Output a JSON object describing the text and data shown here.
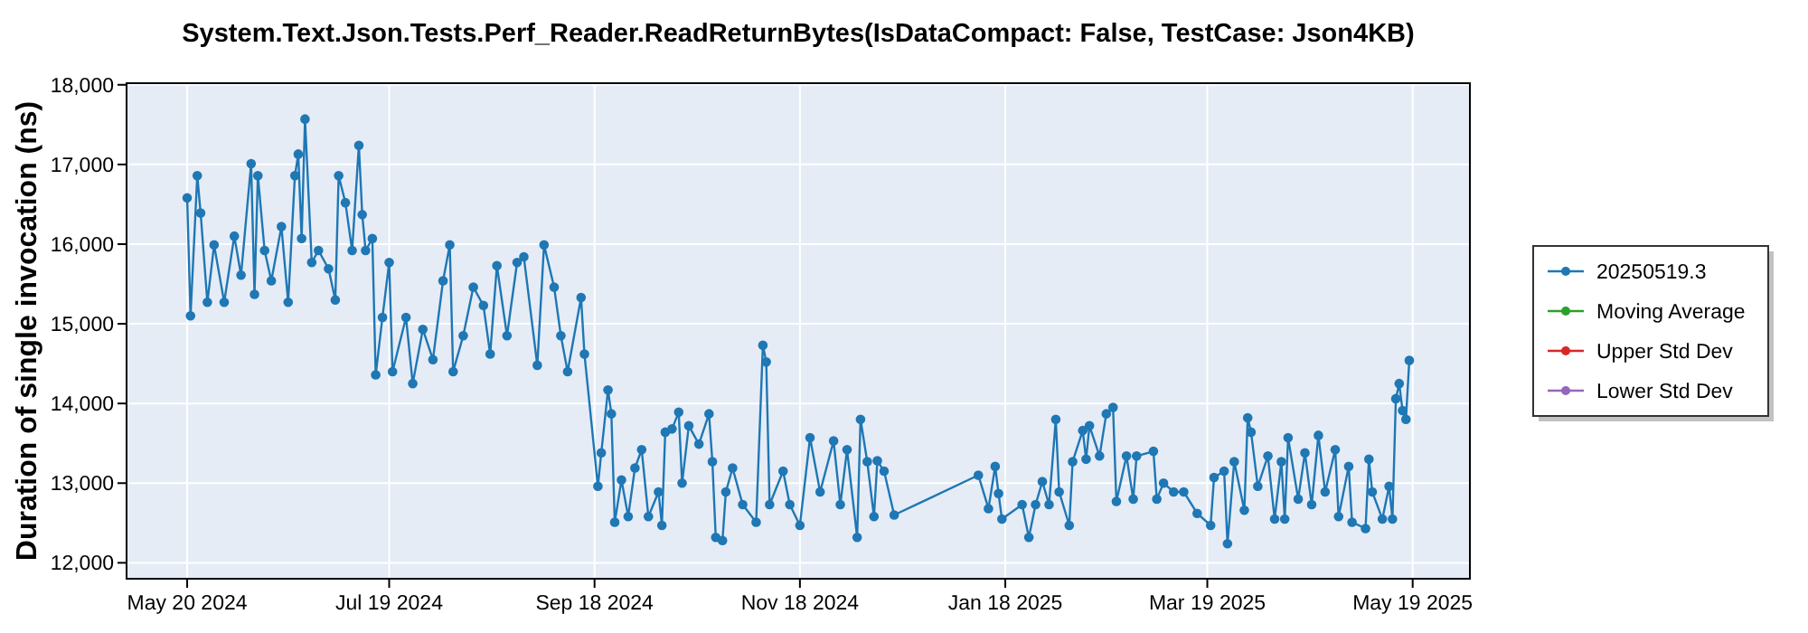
{
  "chart_data": {
    "type": "line",
    "title": "System.Text.Json.Tests.Perf_Reader.ReadReturnBytes(IsDataCompact: False, TestCase: Json4KB)",
    "ylabel": "Duration of single invocation (ns)",
    "xlim": [
      "2024-05-02",
      "2025-06-05"
    ],
    "xticks": [
      {
        "value": "2024-05-20",
        "label": "May 20 2024"
      },
      {
        "value": "2024-07-19",
        "label": "Jul 19 2024"
      },
      {
        "value": "2024-09-18",
        "label": "Sep 18 2024"
      },
      {
        "value": "2024-11-18",
        "label": "Nov 18 2024"
      },
      {
        "value": "2025-01-18",
        "label": "Jan 18 2025"
      },
      {
        "value": "2025-03-19",
        "label": "Mar 19 2025"
      },
      {
        "value": "2025-05-19",
        "label": "May 19 2025"
      }
    ],
    "ylim": [
      11800,
      18020
    ],
    "yticks": [
      {
        "value": 12000,
        "label": "12,000"
      },
      {
        "value": 13000,
        "label": "13,000"
      },
      {
        "value": 14000,
        "label": "14,000"
      },
      {
        "value": 15000,
        "label": "15,000"
      },
      {
        "value": 16000,
        "label": "16,000"
      },
      {
        "value": 17000,
        "label": "17,000"
      },
      {
        "value": 18000,
        "label": "18,000"
      }
    ],
    "grid": true,
    "legend": "right",
    "marker": "circle",
    "line_style": "solid",
    "series": [
      {
        "name": "20250519.3",
        "color": "#1f77b4",
        "x": [
          "2024-05-20",
          "2024-05-21",
          "2024-05-23",
          "2024-05-24",
          "2024-05-26",
          "2024-05-28",
          "2024-05-31",
          "2024-06-03",
          "2024-06-05",
          "2024-06-08",
          "2024-06-09",
          "2024-06-10",
          "2024-06-12",
          "2024-06-14",
          "2024-06-17",
          "2024-06-19",
          "2024-06-21",
          "2024-06-22",
          "2024-06-23",
          "2024-06-24",
          "2024-06-26",
          "2024-06-28",
          "2024-07-01",
          "2024-07-03",
          "2024-07-04",
          "2024-07-06",
          "2024-07-08",
          "2024-07-10",
          "2024-07-11",
          "2024-07-12",
          "2024-07-14",
          "2024-07-15",
          "2024-07-17",
          "2024-07-19",
          "2024-07-20",
          "2024-07-24",
          "2024-07-26",
          "2024-07-29",
          "2024-08-01",
          "2024-08-04",
          "2024-08-06",
          "2024-08-07",
          "2024-08-10",
          "2024-08-13",
          "2024-08-16",
          "2024-08-18",
          "2024-08-20",
          "2024-08-23",
          "2024-08-26",
          "2024-08-28",
          "2024-09-01",
          "2024-09-03",
          "2024-09-06",
          "2024-09-08",
          "2024-09-10",
          "2024-09-14",
          "2024-09-15",
          "2024-09-19",
          "2024-09-20",
          "2024-09-22",
          "2024-09-23",
          "2024-09-24",
          "2024-09-26",
          "2024-09-28",
          "2024-09-30",
          "2024-10-02",
          "2024-10-04",
          "2024-10-07",
          "2024-10-08",
          "2024-10-09",
          "2024-10-11",
          "2024-10-13",
          "2024-10-14",
          "2024-10-16",
          "2024-10-19",
          "2024-10-22",
          "2024-10-23",
          "2024-10-24",
          "2024-10-26",
          "2024-10-27",
          "2024-10-29",
          "2024-11-01",
          "2024-11-05",
          "2024-11-07",
          "2024-11-08",
          "2024-11-09",
          "2024-11-13",
          "2024-11-15",
          "2024-11-18",
          "2024-11-21",
          "2024-11-24",
          "2024-11-28",
          "2024-11-30",
          "2024-12-02",
          "2024-12-05",
          "2024-12-06",
          "2024-12-08",
          "2024-12-10",
          "2024-12-11",
          "2024-12-13",
          "2024-12-16",
          "2025-01-10",
          "2025-01-13",
          "2025-01-15",
          "2025-01-16",
          "2025-01-17",
          "2025-01-23",
          "2025-01-25",
          "2025-01-27",
          "2025-01-29",
          "2025-01-31",
          "2025-02-02",
          "2025-02-03",
          "2025-02-06",
          "2025-02-07",
          "2025-02-10",
          "2025-02-11",
          "2025-02-12",
          "2025-02-15",
          "2025-02-17",
          "2025-02-19",
          "2025-02-20",
          "2025-02-23",
          "2025-02-25",
          "2025-02-26",
          "2025-03-03",
          "2025-03-04",
          "2025-03-06",
          "2025-03-09",
          "2025-03-12",
          "2025-03-16",
          "2025-03-20",
          "2025-03-21",
          "2025-03-24",
          "2025-03-25",
          "2025-03-27",
          "2025-03-30",
          "2025-03-31",
          "2025-04-01",
          "2025-04-03",
          "2025-04-06",
          "2025-04-08",
          "2025-04-10",
          "2025-04-11",
          "2025-04-12",
          "2025-04-15",
          "2025-04-17",
          "2025-04-19",
          "2025-04-21",
          "2025-04-23",
          "2025-04-26",
          "2025-04-27",
          "2025-04-30",
          "2025-05-01",
          "2025-05-05",
          "2025-05-06",
          "2025-05-07",
          "2025-05-10",
          "2025-05-12",
          "2025-05-13",
          "2025-05-14",
          "2025-05-15",
          "2025-05-16",
          "2025-05-17",
          "2025-05-18"
        ],
        "values": [
          16580,
          15100,
          16860,
          16390,
          15270,
          15990,
          15270,
          16100,
          15610,
          17010,
          15370,
          16860,
          15920,
          15540,
          16220,
          15270,
          16860,
          17130,
          16070,
          17570,
          15770,
          15920,
          15690,
          15300,
          16860,
          16520,
          15920,
          17240,
          16370,
          15920,
          16070,
          14360,
          15080,
          15770,
          14400,
          15080,
          14250,
          14930,
          14550,
          15540,
          15990,
          14400,
          14850,
          15460,
          15230,
          14620,
          15730,
          14850,
          15770,
          15840,
          14480,
          15990,
          15460,
          14850,
          14400,
          15330,
          14620,
          12960,
          13380,
          14170,
          13870,
          12510,
          13040,
          12580,
          13190,
          13420,
          12580,
          12890,
          12470,
          13640,
          13680,
          13890,
          13000,
          13720,
          13490,
          13870,
          13270,
          12320,
          12280,
          12890,
          13190,
          12730,
          12510,
          14730,
          14520,
          12730,
          13150,
          12730,
          12470,
          13570,
          12890,
          13530,
          12730,
          13420,
          12320,
          13800,
          13270,
          12580,
          13280,
          13150,
          12600,
          13100,
          12680,
          13210,
          12870,
          12550,
          12730,
          12320,
          12730,
          13020,
          12730,
          13800,
          12890,
          12470,
          13270,
          13660,
          13300,
          13720,
          13340,
          13870,
          13950,
          12770,
          13340,
          12800,
          13340,
          13400,
          12800,
          13000,
          12890,
          12890,
          12620,
          12470,
          13070,
          13150,
          12240,
          13270,
          12660,
          13820,
          13640,
          12960,
          13340,
          12550,
          13270,
          12550,
          13570,
          12800,
          13380,
          12730,
          13600,
          12890,
          13420,
          12580,
          13210,
          12510,
          12430,
          13300,
          12890,
          12550,
          12960,
          12550,
          14060,
          14250,
          13910,
          13800,
          14540
        ]
      },
      {
        "name": "Moving Average",
        "color": "#2ca02c"
      },
      {
        "name": "Upper Std Dev",
        "color": "#d62728"
      },
      {
        "name": "Lower Std Dev",
        "color": "#9467bd"
      }
    ]
  }
}
